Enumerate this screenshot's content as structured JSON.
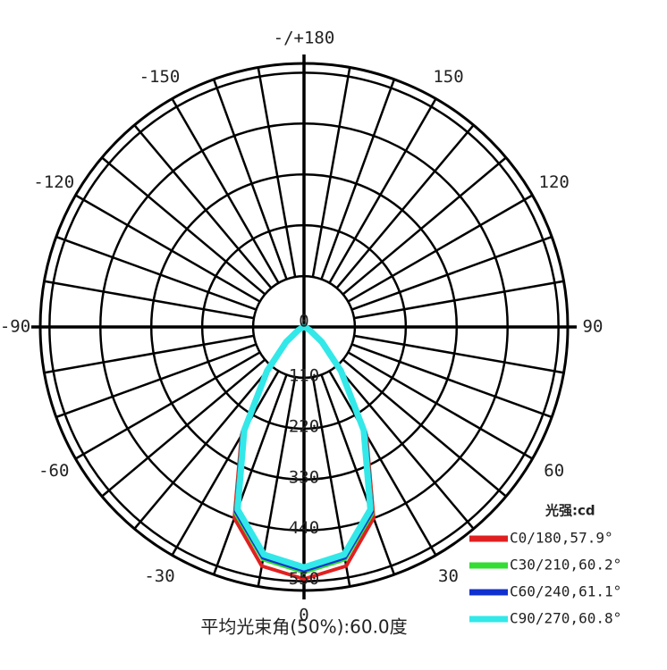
{
  "chart_data": {
    "type": "polar",
    "angle_ticks": [
      {
        "value": 0,
        "label": "0"
      },
      {
        "value": 30,
        "label": "30"
      },
      {
        "value": 60,
        "label": "60"
      },
      {
        "value": 90,
        "label": "90"
      },
      {
        "value": 120,
        "label": "120"
      },
      {
        "value": 150,
        "label": "150"
      },
      {
        "value": 180,
        "label": "-/+180"
      },
      {
        "value": -150,
        "label": "-150"
      },
      {
        "value": -120,
        "label": "-120"
      },
      {
        "value": -90,
        "label": "-90"
      },
      {
        "value": -60,
        "label": "-60"
      },
      {
        "value": -30,
        "label": "-30"
      }
    ],
    "rlim": [
      0,
      570
    ],
    "rticks": [
      0,
      110,
      220,
      330,
      440,
      550
    ],
    "x": [
      -90,
      -80,
      -70,
      -60,
      -50,
      -40,
      -30,
      -20,
      -10,
      0,
      10,
      20,
      30,
      40,
      50,
      60,
      70,
      80,
      90
    ],
    "legend_title": "光强:cd",
    "series": [
      {
        "name": "C0/180,57.9°",
        "color": "#e02020",
        "values": [
          0,
          1,
          4,
          15,
          50,
          130,
          270,
          440,
          525,
          545,
          525,
          440,
          270,
          130,
          50,
          15,
          4,
          1,
          0
        ]
      },
      {
        "name": "C30/210,60.2°",
        "color": "#33dd33",
        "values": [
          0,
          1,
          4,
          16,
          52,
          128,
          265,
          430,
          510,
          530,
          510,
          430,
          265,
          128,
          52,
          16,
          4,
          1,
          0
        ]
      },
      {
        "name": "C60/240,61.1°",
        "color": "#1030d0",
        "values": [
          0,
          1,
          4,
          16,
          52,
          126,
          262,
          425,
          505,
          525,
          505,
          425,
          262,
          126,
          52,
          16,
          4,
          1,
          0
        ]
      },
      {
        "name": "C90/270,60.8°",
        "color": "#33e8e8",
        "values": [
          0,
          1,
          4,
          15,
          50,
          124,
          258,
          420,
          500,
          520,
          500,
          420,
          258,
          124,
          50,
          15,
          4,
          1,
          0
        ]
      }
    ],
    "footer": "平均光束角(50%):60.0度"
  }
}
